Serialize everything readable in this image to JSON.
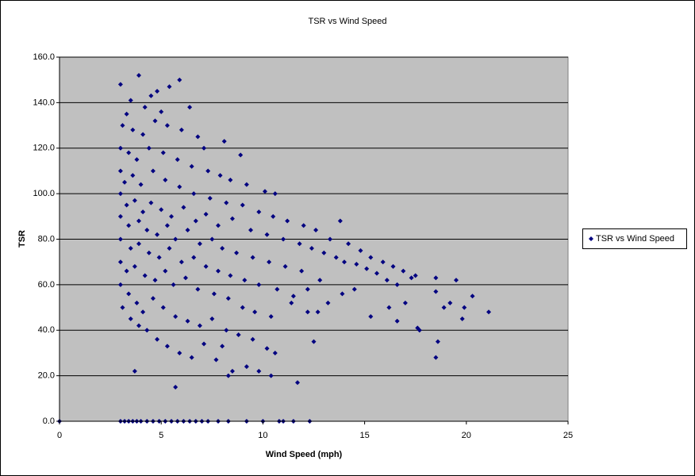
{
  "chart_data": {
    "type": "scatter",
    "title": "TSR vs Wind Speed",
    "x_label": "Wind Speed (mph)",
    "y_label": "TSR",
    "legend": "right",
    "grid": true,
    "xlim": [
      0,
      25
    ],
    "xticks": [
      0,
      5,
      10,
      15,
      20,
      25
    ],
    "ylim": [
      0,
      160
    ],
    "yticks": [
      {
        "value": 0,
        "label": "0.0"
      },
      {
        "value": 20,
        "label": "20.0"
      },
      {
        "value": 40,
        "label": "40.0"
      },
      {
        "value": 60,
        "label": "60.0"
      },
      {
        "value": 80,
        "label": "80.0"
      },
      {
        "value": 100,
        "label": "100.0"
      },
      {
        "value": 120,
        "label": "120.0"
      },
      {
        "value": 140,
        "label": "140.0"
      },
      {
        "value": 160,
        "label": "160.0"
      }
    ],
    "series": [
      {
        "name": "TSR vs Wind Speed",
        "color": "#000080",
        "x": [
          0,
          3.0,
          3.2,
          3.4,
          3.6,
          3.8,
          4.0,
          4.3,
          4.6,
          4.9,
          5.2,
          5.5,
          5.8,
          6.1,
          6.4,
          6.7,
          7.0,
          7.3,
          7.8,
          8.3,
          9.2,
          10.0,
          10.8,
          11.0,
          11.5,
          12.3,
          3.0,
          3.9,
          5.4,
          5.9,
          4.5,
          4.8,
          3.5,
          6.4,
          3.3,
          4.2,
          5.0,
          3.1,
          3.6,
          4.1,
          4.7,
          5.3,
          6.0,
          6.8,
          7.1,
          8.1,
          8.9,
          3.0,
          3.4,
          3.8,
          4.4,
          5.1,
          5.8,
          6.5,
          7.3,
          7.9,
          8.4,
          9.2,
          10.1,
          10.6,
          3.0,
          3.2,
          3.6,
          4.0,
          4.6,
          5.2,
          5.9,
          6.6,
          7.4,
          8.2,
          9.0,
          9.8,
          10.5,
          11.2,
          12.0,
          12.6,
          13.3,
          13.8,
          14.2,
          14.8,
          15.3,
          15.9,
          16.4,
          16.9,
          17.3,
          3.0,
          3.3,
          3.7,
          4.1,
          4.5,
          5.0,
          5.5,
          6.1,
          6.7,
          7.2,
          7.8,
          8.5,
          9.4,
          10.2,
          11.0,
          11.8,
          12.4,
          13.0,
          13.6,
          14.0,
          14.6,
          15.1,
          15.6,
          16.1,
          16.6,
          3.0,
          3.4,
          3.9,
          4.3,
          4.8,
          5.3,
          5.7,
          6.3,
          6.9,
          7.5,
          8.0,
          8.7,
          9.5,
          10.3,
          11.1,
          11.9,
          12.8,
          3.0,
          3.5,
          3.9,
          4.4,
          4.9,
          5.4,
          6.0,
          6.6,
          7.2,
          7.8,
          8.4,
          9.1,
          9.8,
          10.7,
          11.5,
          3.0,
          3.3,
          3.7,
          4.2,
          4.7,
          5.2,
          5.6,
          6.2,
          6.8,
          7.6,
          8.3,
          9.0,
          9.6,
          10.4,
          11.4,
          12.2,
          12.7,
          3.0,
          3.4,
          3.8,
          4.1,
          4.6,
          5.1,
          5.7,
          6.3,
          6.9,
          7.5,
          8.2,
          8.8,
          9.5,
          10.2,
          3.1,
          3.5,
          3.9,
          4.3,
          4.8,
          5.3,
          5.9,
          6.5,
          7.1,
          7.7,
          8.3,
          8.5,
          9.2,
          9.8,
          10.4,
          11.7,
          12.5,
          3.7,
          5.7,
          8.0,
          10.6,
          17.7,
          18.5,
          18.5,
          18.6,
          18.5,
          18.9,
          19.2,
          19.5,
          19.8,
          19.9,
          20.3,
          21.1,
          17.6,
          16.2,
          15.3,
          16.6,
          17.0,
          17.5,
          14.5,
          13.9,
          13.2,
          12.2
        ],
        "values": [
          0,
          0,
          0,
          0,
          0,
          0,
          0,
          0,
          0,
          0,
          0,
          0,
          0,
          0,
          0,
          0,
          0,
          0,
          0,
          0,
          0,
          0,
          0,
          0,
          0,
          0,
          148,
          152,
          147,
          150,
          143,
          145,
          141,
          138,
          135,
          138,
          136,
          130,
          128,
          126,
          132,
          130,
          128,
          125,
          120,
          123,
          117,
          120,
          118,
          115,
          120,
          118,
          115,
          112,
          110,
          108,
          106,
          104,
          101,
          100,
          110,
          105,
          108,
          104,
          110,
          106,
          103,
          100,
          98,
          96,
          95,
          92,
          90,
          88,
          86,
          84,
          80,
          88,
          78,
          75,
          72,
          70,
          68,
          66,
          63,
          100,
          95,
          97,
          92,
          96,
          93,
          90,
          94,
          88,
          91,
          86,
          89,
          84,
          82,
          80,
          78,
          76,
          74,
          72,
          70,
          69,
          67,
          65,
          62,
          60,
          90,
          86,
          88,
          84,
          82,
          86,
          80,
          84,
          78,
          80,
          76,
          74,
          72,
          70,
          68,
          66,
          62,
          80,
          76,
          78,
          74,
          72,
          76,
          70,
          72,
          68,
          66,
          64,
          62,
          60,
          58,
          55,
          70,
          66,
          68,
          64,
          62,
          66,
          60,
          63,
          58,
          56,
          54,
          50,
          48,
          46,
          52,
          58,
          48,
          60,
          56,
          52,
          48,
          54,
          50,
          46,
          44,
          42,
          45,
          40,
          38,
          36,
          32,
          50,
          45,
          42,
          40,
          36,
          33,
          30,
          28,
          34,
          27,
          20,
          22,
          24,
          22,
          20,
          17,
          35,
          22,
          15,
          33,
          30,
          40,
          63,
          57,
          35,
          28,
          50,
          52,
          62,
          45,
          50,
          55,
          48,
          41,
          50,
          46,
          44,
          52,
          64,
          58,
          56,
          52,
          48
        ]
      }
    ]
  }
}
